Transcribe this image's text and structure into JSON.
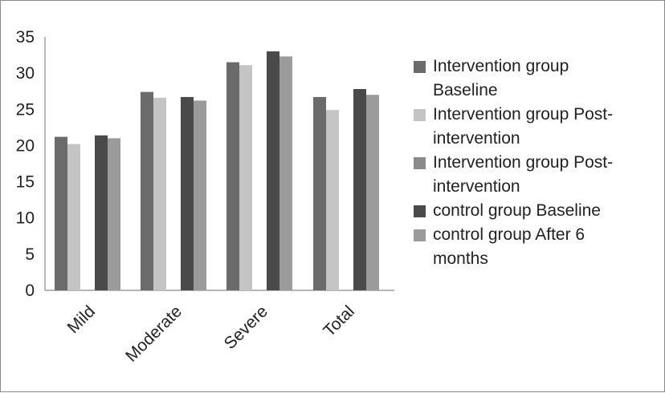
{
  "chart_data": {
    "type": "bar",
    "categories": [
      "Mild",
      "Moderate",
      "Severe",
      "Total"
    ],
    "yticks": [
      "0",
      "5",
      "10",
      "15",
      "20",
      "25",
      "30",
      "35"
    ],
    "ylim": [
      0,
      35
    ],
    "grid": false,
    "legend_position": "right",
    "series": [
      {
        "name": "Intervention group Baseline",
        "legend_lines": [
          "Intervention group",
          "Baseline"
        ],
        "color": "#6b6b6b",
        "values": [
          21.2,
          27.4,
          31.5,
          26.7
        ]
      },
      {
        "name": "Intervention group Post-intervention",
        "legend_lines": [
          "Intervention group Post-",
          "intervention"
        ],
        "color": "#c4c4c4",
        "values": [
          20.2,
          26.6,
          31.1,
          24.9
        ]
      },
      {
        "name": "Intervention group Post-intervention",
        "legend_lines": [
          "Intervention group Post-",
          "intervention"
        ],
        "color": "#8a8a8a",
        "values": null
      },
      {
        "name": "control group Baseline",
        "legend_lines": [
          "control group Baseline"
        ],
        "color": "#4a4a4a",
        "values": [
          21.4,
          26.7,
          33.0,
          27.8
        ]
      },
      {
        "name": "control group After 6 months",
        "legend_lines": [
          "control group After 6",
          "months"
        ],
        "color": "#9b9b9b",
        "values": [
          21.0,
          26.2,
          32.3,
          27.0
        ]
      }
    ]
  }
}
